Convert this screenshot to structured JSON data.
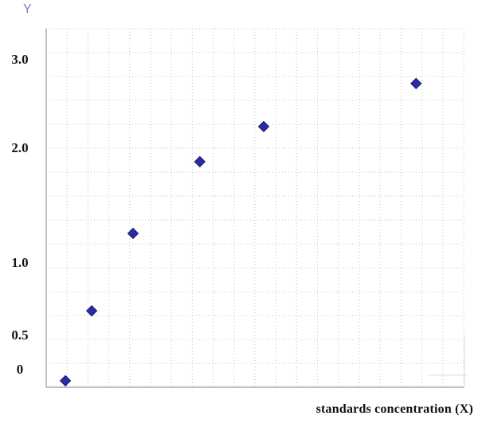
{
  "figure": {
    "background": "#ffffff"
  },
  "chart_data": {
    "type": "scatter",
    "title": "",
    "xlabel": "standards concentration (X)",
    "ylabel": "Y",
    "grid": true,
    "legend": "none",
    "marker": "diamond",
    "marker_color": "#2b2ba3",
    "marker_edge_color": "#1c1c72",
    "grid_color": "#c2c2ca",
    "axis_color": "#9a9aa2",
    "ylabel_color": "#7a7ad8",
    "xlabel_color": "#101010",
    "ylim": [
      0,
      3.3
    ],
    "x_ticks_labeled": false,
    "n_vertical_gridlines": 21,
    "n_horizontal_gridlines": 16,
    "y_ticks": [
      {
        "label": "3.0",
        "value": 3.0,
        "fy": 0.087
      },
      {
        "label": "2.0",
        "value": 2.0,
        "fy": 0.333
      },
      {
        "label": "1.0",
        "value": 1.0,
        "fy": 0.653
      },
      {
        "label": "0.5",
        "value": 0.5,
        "fy": 0.856
      },
      {
        "label": "0",
        "value": 0.0,
        "fy": 0.951
      }
    ],
    "points": [
      {
        "y": 0.1,
        "fx": 0.046,
        "fy": 0.982
      },
      {
        "y": 0.7,
        "fx": 0.109,
        "fy": 0.787
      },
      {
        "y": 1.3,
        "fx": 0.208,
        "fy": 0.571
      },
      {
        "y": 1.95,
        "fx": 0.368,
        "fy": 0.371
      },
      {
        "y": 2.25,
        "fx": 0.521,
        "fy": 0.273
      },
      {
        "y": 2.75,
        "fx": 0.886,
        "fy": 0.153
      }
    ]
  }
}
